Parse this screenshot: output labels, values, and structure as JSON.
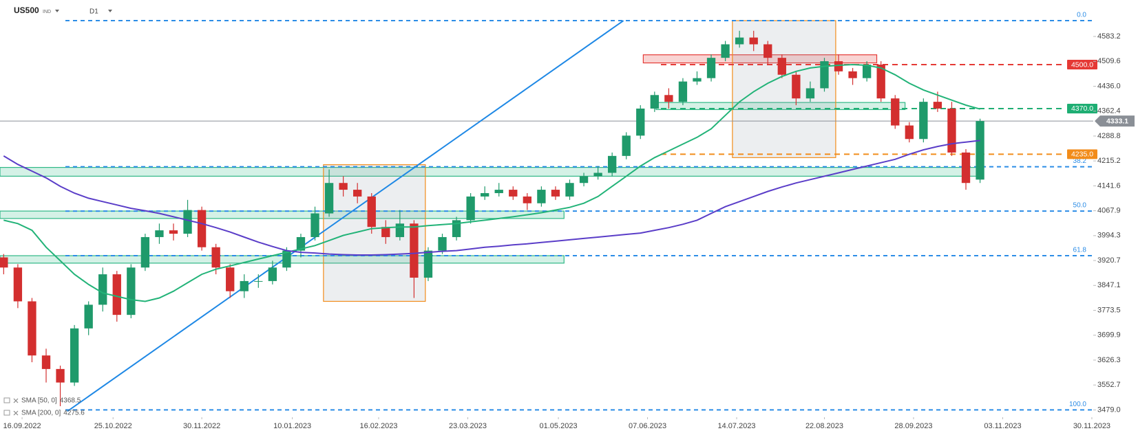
{
  "chart_data": {
    "type": "candlestick",
    "symbol": "US500",
    "symbol_tag": "IND",
    "timeframe": "D1",
    "up_color": "#1f9a6b",
    "down_color": "#d32f2f",
    "open": [
      3930,
      3900,
      3800,
      3640,
      3600,
      3560,
      3720,
      3790,
      3880,
      3760,
      3900,
      3990,
      4010,
      4000,
      4070,
      3960,
      3900,
      3830,
      3860,
      3860,
      3900,
      3950,
      3990,
      4060,
      4150,
      4130,
      4110,
      4020,
      3990,
      4030,
      3870,
      3950,
      3990,
      4040,
      4110,
      4120,
      4130,
      4110,
      4090,
      4130,
      4110,
      4150,
      4170,
      4180,
      4230,
      4290,
      4370,
      4410,
      4390,
      4450,
      4460,
      4520,
      4560,
      4580,
      4560,
      4520,
      4470,
      4400,
      4430,
      4510,
      4480,
      4460,
      4500,
      4400,
      4320,
      4280,
      4390,
      4370,
      4240,
      4160
    ],
    "high": [
      3940,
      3910,
      3810,
      3660,
      3610,
      3730,
      3800,
      3900,
      3890,
      3910,
      4000,
      4030,
      4030,
      4100,
      4080,
      3970,
      3910,
      3880,
      3880,
      3920,
      3960,
      4000,
      4080,
      4190,
      4170,
      4150,
      4120,
      4040,
      4070,
      4040,
      3960,
      4000,
      4050,
      4120,
      4140,
      4150,
      4140,
      4120,
      4140,
      4140,
      4160,
      4180,
      4200,
      4240,
      4300,
      4380,
      4420,
      4430,
      4460,
      4480,
      4530,
      4570,
      4600,
      4600,
      4570,
      4530,
      4480,
      4450,
      4520,
      4530,
      4490,
      4510,
      4510,
      4410,
      4330,
      4400,
      4420,
      4390,
      4250,
      4340
    ],
    "low": [
      3880,
      3780,
      3620,
      3560,
      3490,
      3550,
      3700,
      3770,
      3740,
      3750,
      3890,
      3970,
      3980,
      3990,
      3950,
      3880,
      3810,
      3810,
      3840,
      3850,
      3890,
      3930,
      3980,
      4050,
      4110,
      4090,
      4000,
      3970,
      3980,
      3810,
      3860,
      3940,
      3980,
      4030,
      4100,
      4110,
      4100,
      4070,
      4080,
      4100,
      4100,
      4140,
      4160,
      4170,
      4220,
      4280,
      4360,
      4370,
      4380,
      4440,
      4450,
      4510,
      4550,
      4540,
      4500,
      4460,
      4380,
      4390,
      4420,
      4470,
      4440,
      4450,
      4390,
      4310,
      4270,
      4270,
      4360,
      4230,
      4130,
      4150
    ],
    "close": [
      3900,
      3800,
      3640,
      3600,
      3560,
      3720,
      3790,
      3880,
      3760,
      3900,
      3990,
      4010,
      4000,
      4070,
      3960,
      3900,
      3830,
      3860,
      3860,
      3900,
      3950,
      3990,
      4060,
      4150,
      4130,
      4110,
      4020,
      3990,
      4030,
      3870,
      3950,
      3990,
      4040,
      4110,
      4120,
      4130,
      4110,
      4090,
      4130,
      4110,
      4150,
      4170,
      4180,
      4230,
      4290,
      4370,
      4410,
      4390,
      4450,
      4460,
      4520,
      4560,
      4580,
      4560,
      4520,
      4470,
      4400,
      4430,
      4510,
      4480,
      4460,
      4500,
      4400,
      4320,
      4280,
      4390,
      4370,
      4240,
      4150,
      4333.1
    ],
    "series": [
      {
        "name": "SMA [50, 0]",
        "color": "#22b378",
        "values": [
          4040,
          4030,
          4010,
          3960,
          3920,
          3880,
          3850,
          3825,
          3815,
          3805,
          3800,
          3810,
          3830,
          3855,
          3880,
          3895,
          3905,
          3915,
          3925,
          3935,
          3945,
          3955,
          3965,
          3980,
          3995,
          4005,
          4015,
          4018,
          4020,
          4020,
          4024,
          4027,
          4030,
          4035,
          4040,
          4045,
          4050,
          4056,
          4062,
          4070,
          4078,
          4090,
          4110,
          4140,
          4170,
          4200,
          4225,
          4245,
          4265,
          4285,
          4310,
          4350,
          4390,
          4420,
          4445,
          4465,
          4480,
          4490,
          4495,
          4498,
          4500,
          4498,
          4490,
          4470,
          4445,
          4425,
          4410,
          4395,
          4380,
          4368.5
        ]
      },
      {
        "name": "SMA [200, 0]",
        "color": "#5a3dc8",
        "values": [
          4230,
          4205,
          4185,
          4165,
          4140,
          4120,
          4105,
          4095,
          4085,
          4075,
          4068,
          4060,
          4050,
          4040,
          4030,
          4018,
          4005,
          3990,
          3975,
          3962,
          3950,
          3945,
          3943,
          3940,
          3938,
          3937,
          3937,
          3938,
          3940,
          3942,
          3945,
          3948,
          3950,
          3955,
          3960,
          3963,
          3967,
          3970,
          3974,
          3978,
          3982,
          3986,
          3990,
          3994,
          3998,
          4002,
          4010,
          4018,
          4028,
          4040,
          4060,
          4080,
          4095,
          4110,
          4125,
          4138,
          4150,
          4160,
          4170,
          4180,
          4190,
          4200,
          4210,
          4220,
          4235,
          4248,
          4258,
          4266,
          4271,
          4275.6
        ]
      }
    ],
    "ylim": [
      3457.5,
      4691
    ],
    "yticks": [
      {
        "value": 3479,
        "label": "3479.0"
      },
      3552.7,
      3626.3,
      3699.9,
      3773.5,
      3847.1,
      3920.7,
      3994.3,
      4067.9,
      4141.6,
      4215.2,
      4288.8,
      4362.4,
      {
        "value": 4436,
        "label": "4436.0"
      },
      4509.6,
      4583.2
    ],
    "xlim": [
      -0.26,
      77
    ],
    "xticks": [
      {
        "value": 1.3,
        "label": "16.09.2022"
      },
      {
        "value": 7.73,
        "label": "25.10.2022"
      },
      {
        "value": 14.0,
        "label": "30.11.2022"
      },
      {
        "value": 20.4,
        "label": "10.01.2023"
      },
      {
        "value": 26.5,
        "label": "16.02.2023"
      },
      {
        "value": 32.8,
        "label": "23.03.2023"
      },
      {
        "value": 39.2,
        "label": "01.05.2023"
      },
      {
        "value": 45.5,
        "label": "07.06.2023"
      },
      {
        "value": 51.8,
        "label": "14.07.2023"
      },
      {
        "value": 58.0,
        "label": "22.08.2023"
      },
      {
        "value": 64.3,
        "label": "28.09.2023"
      },
      {
        "value": 70.6,
        "label": "03.11.2023"
      },
      {
        "value": 76.9,
        "label": "30.11.2023"
      }
    ],
    "fib_levels": [
      {
        "label": "0.0",
        "value": 4630
      },
      {
        "label": "38.2",
        "value": 4198
      },
      {
        "label": "50.0",
        "value": 4067
      },
      {
        "label": "61.8",
        "value": 3935
      },
      {
        "label": "100.0",
        "value": 3479
      }
    ],
    "fib_color": "#2b8ce6",
    "price_levels": [
      {
        "value": 4500,
        "label": "4500.0",
        "color": "#e53935"
      },
      {
        "value": 4370,
        "label": "4370.0",
        "color": "#1eae73"
      },
      {
        "value": 4235,
        "label": "4235.0",
        "color": "#f28c1a"
      }
    ],
    "last_price": {
      "value": 4333.1,
      "color": "#8a8f96"
    },
    "zones": [
      {
        "x": [
          -0.26,
          69
        ],
        "y": [
          4170,
          4196
        ],
        "fill": "rgba(58,190,140,0.22)",
        "stroke": "#2eb886"
      },
      {
        "x": [
          -0.26,
          39.6
        ],
        "y": [
          4045,
          4067
        ],
        "fill": "rgba(58,190,140,0.22)",
        "stroke": "#2eb886"
      },
      {
        "x": [
          -0.26,
          39.6
        ],
        "y": [
          3913,
          3935
        ],
        "fill": "rgba(58,190,140,0.22)",
        "stroke": "#2eb886"
      },
      {
        "x": [
          46.1,
          63.7
        ],
        "y": [
          4367,
          4388
        ],
        "fill": "rgba(58,190,140,0.22)",
        "stroke": "#2eb886"
      },
      {
        "x": [
          45.2,
          61.7
        ],
        "y": [
          4505,
          4529
        ],
        "fill": "rgba(229,57,53,0.22)",
        "stroke": "#e53935"
      },
      {
        "x": [
          22.6,
          29.8
        ],
        "y": [
          3800,
          4204
        ],
        "fill": "rgba(150,160,170,0.18)",
        "stroke": "#f28c1a"
      },
      {
        "x": [
          51.5,
          58.8
        ],
        "y": [
          4225,
          4630
        ],
        "fill": "rgba(150,160,170,0.18)",
        "stroke": "#f28c1a"
      }
    ],
    "trendline": {
      "x": [
        4.5,
        43.8
      ],
      "y": [
        3475,
        4630
      ],
      "color": "#1e88e5"
    }
  }
}
